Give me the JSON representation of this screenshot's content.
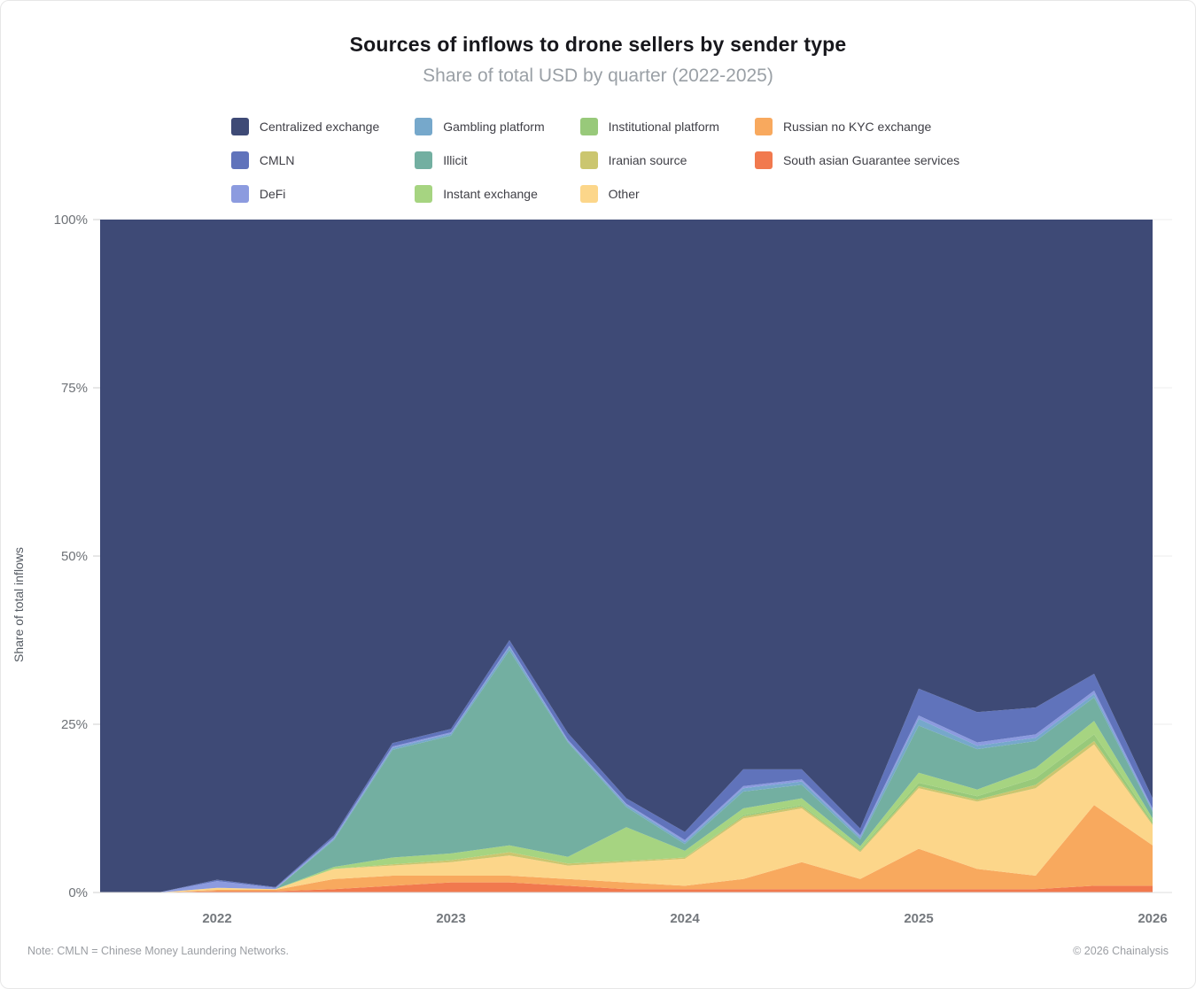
{
  "header": {
    "title": "Sources of inflows to drone sellers by sender type",
    "subtitle": "Share of total USD by quarter (2022-2025)"
  },
  "legend": {
    "items": [
      {
        "label": "Centralized exchange",
        "color": "#3e4a76"
      },
      {
        "label": "CMLN",
        "color": "#6073bb"
      },
      {
        "label": "DeFi",
        "color": "#8c9bdf"
      },
      {
        "label": "Gambling platform",
        "color": "#76a8cb"
      },
      {
        "label": "Illicit",
        "color": "#73afa1"
      },
      {
        "label": "Instant exchange",
        "color": "#a6d481"
      },
      {
        "label": "Institutional platform",
        "color": "#98c97a"
      },
      {
        "label": "Iranian source",
        "color": "#cbc66f"
      },
      {
        "label": "Other",
        "color": "#fcd68a"
      },
      {
        "label": "Russian no KYC exchange",
        "color": "#f8a95e"
      },
      {
        "label": "South asian Guarantee services",
        "color": "#f1794e"
      }
    ]
  },
  "chart_data": {
    "type": "area",
    "stacked": true,
    "normalized_percent": true,
    "title": "Sources of inflows to drone sellers by sender type",
    "subtitle": "Share of total USD by quarter (2022-2025)",
    "xlabel": "",
    "ylabel": "Share of total inflows",
    "ylim": [
      0,
      100
    ],
    "grid": "horizontal",
    "legend_position": "top",
    "yticks": [
      "0%",
      "25%",
      "50%",
      "75%",
      "100%"
    ],
    "ytick_values": [
      0,
      25,
      50,
      75,
      100
    ],
    "xticks": [
      {
        "label": "2022",
        "index": 2
      },
      {
        "label": "2023",
        "index": 6
      },
      {
        "label": "2024",
        "index": 10
      },
      {
        "label": "2025",
        "index": 14
      },
      {
        "label": "2026",
        "index": 18
      }
    ],
    "quarters": [
      "2021-Q3",
      "2021-Q4",
      "2022-Q1",
      "2022-Q2",
      "2022-Q3",
      "2022-Q4",
      "2023-Q1",
      "2023-Q2",
      "2023-Q3",
      "2023-Q4",
      "2024-Q1",
      "2024-Q2",
      "2024-Q3",
      "2024-Q4",
      "2025-Q1",
      "2025-Q2",
      "2025-Q3",
      "2025-Q4",
      "2026-Q1"
    ],
    "series": [
      {
        "name": "South asian Guarantee services",
        "color": "#f1794e",
        "values": [
          0,
          0,
          0.2,
          0.2,
          0.5,
          1,
          1.5,
          1.5,
          1,
          0.5,
          0.5,
          0.5,
          0.5,
          0.5,
          0.5,
          0.5,
          0.5,
          1,
          1
        ]
      },
      {
        "name": "Russian no KYC exchange",
        "color": "#f8a95e",
        "values": [
          0,
          0,
          0.2,
          0.2,
          1.5,
          1.5,
          1,
          1,
          1,
          1,
          0.5,
          1.5,
          4,
          1.5,
          6,
          3,
          2,
          12,
          6
        ]
      },
      {
        "name": "Other",
        "color": "#fcd68a",
        "values": [
          0,
          0,
          0.3,
          0.1,
          1.5,
          1.5,
          2,
          3,
          2,
          3,
          4,
          9,
          8,
          4,
          9,
          10,
          13,
          9,
          3
        ]
      },
      {
        "name": "Iranian source",
        "color": "#cbc66f",
        "values": [
          0,
          0,
          0,
          0,
          0,
          0.2,
          0.3,
          0.5,
          0.3,
          0.2,
          0.2,
          0.3,
          0.3,
          0.2,
          0.3,
          0.3,
          0.5,
          0.5,
          0.2
        ]
      },
      {
        "name": "Institutional platform",
        "color": "#98c97a",
        "values": [
          0,
          0,
          0,
          0,
          0,
          0,
          0,
          0,
          0,
          0,
          0,
          0.2,
          0.2,
          0.2,
          0.5,
          0.5,
          1,
          1,
          0.3
        ]
      },
      {
        "name": "Instant exchange",
        "color": "#a6d481",
        "values": [
          0,
          0,
          0,
          0,
          0.3,
          1,
          1,
          1,
          1,
          5,
          1,
          1,
          1,
          0.5,
          1.5,
          1,
          1.5,
          2,
          0.5
        ]
      },
      {
        "name": "Illicit",
        "color": "#73afa1",
        "values": [
          0,
          0,
          0,
          0,
          4,
          16,
          17.5,
          29,
          17,
          3,
          1,
          2.5,
          2,
          1,
          7,
          6,
          4,
          3.5,
          1
        ]
      },
      {
        "name": "Gambling platform",
        "color": "#76a8cb",
        "values": [
          0,
          0,
          0,
          0,
          0.2,
          0.3,
          0.3,
          0.5,
          0.2,
          0.3,
          0.3,
          0.5,
          0.5,
          0.3,
          1,
          0.5,
          0.5,
          0.5,
          0.2
        ]
      },
      {
        "name": "DeFi",
        "color": "#8c9bdf",
        "values": [
          0,
          0,
          1,
          0.2,
          0.2,
          0.2,
          0.2,
          0.2,
          0.2,
          0.2,
          0.3,
          0.3,
          0.3,
          0.3,
          0.5,
          0.5,
          0.5,
          0.5,
          0.3
        ]
      },
      {
        "name": "CMLN",
        "color": "#6073bb",
        "values": [
          0,
          0,
          0.2,
          0.1,
          0.3,
          0.5,
          0.5,
          0.8,
          1,
          0.8,
          1.2,
          2.5,
          1.5,
          1,
          4,
          4.5,
          4,
          2.5,
          1.5
        ]
      },
      {
        "name": "Centralized exchange",
        "color": "#3e4a76",
        "values": [
          100,
          100,
          98.1,
          99.2,
          91.5,
          77.8,
          75.7,
          62.5,
          76.3,
          86,
          91,
          81.7,
          81.7,
          90.5,
          69.7,
          73.2,
          72.5,
          67.5,
          86
        ]
      }
    ]
  },
  "footer": {
    "note": "Note: CMLN = Chinese Money Laundering Networks.",
    "copyright": "© 2026 Chainalysis"
  }
}
